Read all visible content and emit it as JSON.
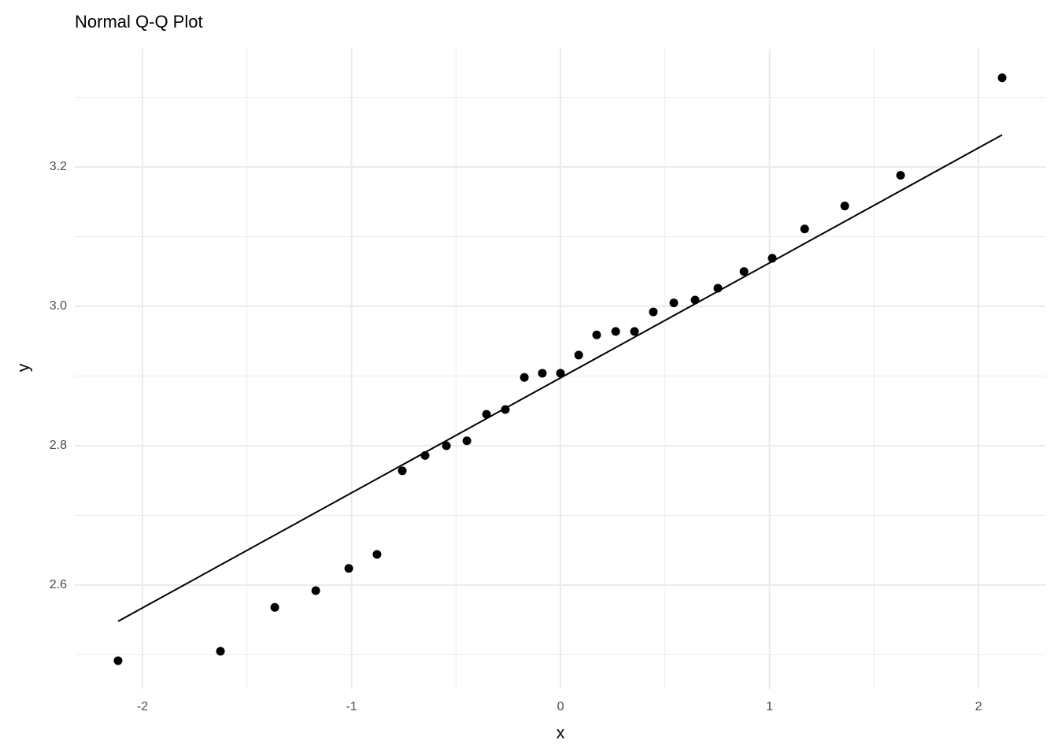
{
  "chart_data": {
    "type": "scatter",
    "title": "Normal Q-Q Plot",
    "x_label": "x",
    "y_label": "y",
    "x": [
      -2.117,
      -1.627,
      -1.367,
      -1.171,
      -1.013,
      -0.878,
      -0.757,
      -0.648,
      -0.546,
      -0.448,
      -0.354,
      -0.264,
      -0.173,
      -0.087,
      0,
      0.087,
      0.173,
      0.264,
      0.354,
      0.444,
      0.542,
      0.644,
      0.753,
      0.878,
      1.013,
      1.168,
      1.36,
      1.627,
      2.113
    ],
    "series": [
      {
        "name": "y",
        "color": "#000000",
        "values": [
          2.4915,
          2.505,
          2.568,
          2.592,
          2.624,
          2.644,
          2.764,
          2.786,
          2.8,
          2.807,
          2.845,
          2.852,
          2.898,
          2.904,
          2.904,
          2.93,
          2.959,
          2.964,
          2.964,
          2.992,
          3.005,
          3.009,
          3.026,
          3.05,
          3.069,
          3.111,
          3.144,
          3.188,
          3.328
        ]
      }
    ],
    "line": {
      "x": [
        -2.117,
        2.113
      ],
      "y": [
        2.548,
        3.246
      ],
      "color": "#000000"
    },
    "xlim": [
      -2.324,
      2.32
    ],
    "ylim": [
      2.4508,
      3.3695
    ],
    "xticks": [
      -2,
      -1,
      0,
      1,
      2
    ],
    "yticks": [
      2.6,
      2.8,
      {
        "value": 3,
        "label": "3.0"
      },
      3.2
    ],
    "xminor_ticks": [
      -1.5,
      -0.5,
      0.5,
      1.5
    ],
    "yminor_ticks": [
      2.5,
      2.7,
      2.9,
      3.1,
      3.3
    ],
    "grid": true
  }
}
